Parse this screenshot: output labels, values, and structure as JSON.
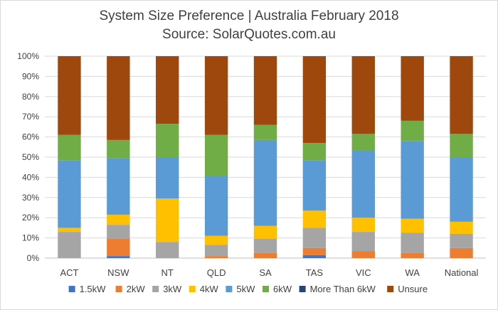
{
  "chart_data": {
    "type": "bar",
    "stacked": true,
    "percent": true,
    "title": "System Size Preference  | Australia February 2018",
    "subtitle": "Source: SolarQuotes.com.au",
    "xlabel": "",
    "ylabel": "",
    "ylim": [
      0,
      100
    ],
    "y_ticks": [
      "0%",
      "10%",
      "20%",
      "30%",
      "40%",
      "50%",
      "60%",
      "70%",
      "80%",
      "90%",
      "100%"
    ],
    "grid": true,
    "legend_position": "bottom",
    "categories": [
      "ACT",
      "NSW",
      "NT",
      "QLD",
      "SA",
      "TAS",
      "VIC",
      "WA",
      "National"
    ],
    "series": [
      {
        "name": "1.5kW",
        "color": "#4472c4",
        "values": [
          0,
          1,
          0,
          0,
          0,
          1.5,
          0,
          0,
          0
        ]
      },
      {
        "name": "2kW",
        "color": "#ed7d31",
        "values": [
          0,
          8.5,
          0,
          1,
          2.5,
          3.5,
          3.5,
          2.5,
          5
        ]
      },
      {
        "name": "3kW",
        "color": "#a5a5a5",
        "values": [
          13,
          7,
          8,
          5.5,
          7,
          10,
          9.5,
          10,
          7
        ]
      },
      {
        "name": "4kW",
        "color": "#ffc000",
        "values": [
          2,
          5,
          21.5,
          4.5,
          6.5,
          8.5,
          7,
          7,
          6
        ]
      },
      {
        "name": "5kW",
        "color": "#5b9bd5",
        "values": [
          33.5,
          28,
          20.5,
          29.5,
          42.5,
          25,
          33.5,
          38.5,
          32
        ]
      },
      {
        "name": "6kW",
        "color": "#70ad47",
        "values": [
          12.5,
          9,
          16.5,
          20.5,
          7.5,
          8.5,
          8,
          10,
          11.5
        ]
      },
      {
        "name": "More Than 6kW",
        "color": "#264478",
        "values": [
          0,
          0,
          0,
          0,
          0,
          0,
          0,
          0,
          0
        ]
      },
      {
        "name": "Unsure",
        "color": "#9e480e",
        "values": [
          39,
          41.5,
          33.5,
          39,
          34,
          43,
          38.5,
          32,
          38.5
        ]
      }
    ],
    "colors": {
      "grid": "#d9d9d9",
      "axis": "#bfbfbf",
      "text": "#404040"
    }
  }
}
